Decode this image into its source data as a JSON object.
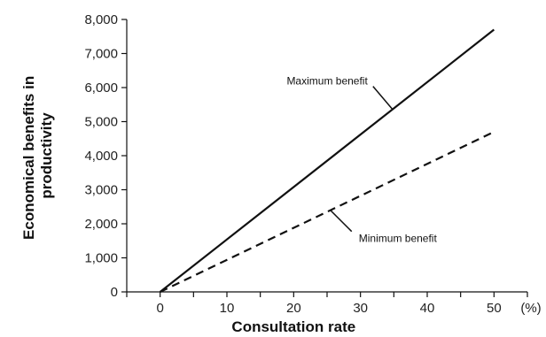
{
  "chart_data": {
    "type": "line",
    "xlabel": "Consultation rate",
    "xunit": "(%)",
    "ylabel": "Economical benefits in productivity",
    "xlim": [
      -5,
      55
    ],
    "ylim": [
      0,
      8000
    ],
    "xticks": [
      0,
      10,
      20,
      30,
      40,
      50
    ],
    "xtick_labels": [
      "0",
      "10",
      "20",
      "30",
      "40",
      "50"
    ],
    "yticks": [
      0,
      1000,
      2000,
      3000,
      4000,
      5000,
      6000,
      7000,
      8000
    ],
    "ytick_labels": [
      "0",
      "1,000",
      "2,000",
      "3,000",
      "4,000",
      "5,000",
      "6,000",
      "7,000",
      "8,000"
    ],
    "grid": false,
    "series": [
      {
        "name": "Maximum benefit",
        "style": "solid",
        "color": "#111111",
        "x": [
          0,
          50
        ],
        "y": [
          0,
          7700
        ]
      },
      {
        "name": "Minimum benefit",
        "style": "dashed",
        "color": "#111111",
        "x": [
          0,
          50
        ],
        "y": [
          0,
          4700
        ]
      }
    ],
    "annotations": [
      {
        "text": "Maximum benefit",
        "series": 0,
        "point_x": 34.8
      },
      {
        "text": "Minimum benefit",
        "series": 1,
        "point_x": 25.5
      }
    ]
  }
}
